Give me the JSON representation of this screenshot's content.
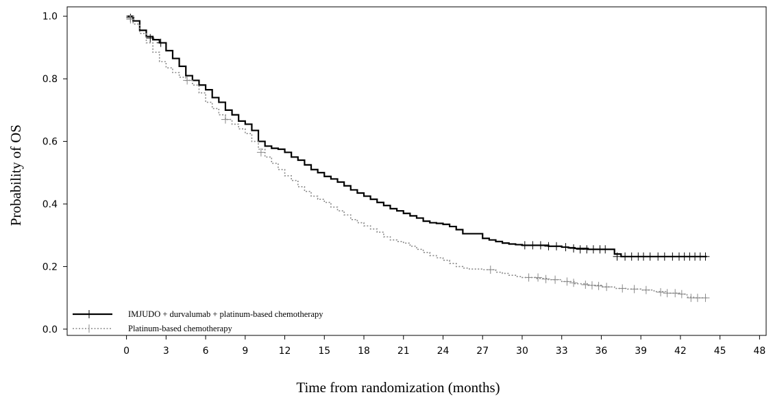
{
  "chart_data": {
    "type": "line",
    "chart_style": "kaplan-meier step curves with censor marks",
    "xlabel": "Time from randomization (months)",
    "ylabel": "Probability of OS",
    "xlim": [
      -4.5,
      48.5
    ],
    "ylim": [
      -0.02,
      1.03
    ],
    "x_ticks": [
      0,
      3,
      6,
      9,
      12,
      15,
      18,
      21,
      24,
      27,
      30,
      33,
      36,
      39,
      42,
      45,
      48
    ],
    "y_ticks": [
      0.0,
      0.2,
      0.4,
      0.6,
      0.8,
      1.0
    ],
    "y_tick_labels": [
      "0.0",
      "0.2",
      "0.4",
      "0.6",
      "0.8",
      "1.0"
    ],
    "grid": false,
    "legend_position": "bottom-left",
    "series": [
      {
        "name": "IMJUDO + durvalumab + platinum-based chemotherapy",
        "color": "#000000",
        "line_style": "solid",
        "points": [
          [
            0,
            1.0
          ],
          [
            0.5,
            0.985
          ],
          [
            1,
            0.955
          ],
          [
            1.5,
            0.935
          ],
          [
            2,
            0.925
          ],
          [
            2.5,
            0.915
          ],
          [
            3,
            0.89
          ],
          [
            3.5,
            0.865
          ],
          [
            4,
            0.84
          ],
          [
            4.5,
            0.81
          ],
          [
            5,
            0.795
          ],
          [
            5.5,
            0.78
          ],
          [
            6,
            0.765
          ],
          [
            6.5,
            0.74
          ],
          [
            7,
            0.725
          ],
          [
            7.5,
            0.7
          ],
          [
            8,
            0.685
          ],
          [
            8.5,
            0.665
          ],
          [
            9,
            0.655
          ],
          [
            9.5,
            0.635
          ],
          [
            10,
            0.6
          ],
          [
            10.5,
            0.585
          ],
          [
            11,
            0.578
          ],
          [
            11.5,
            0.575
          ],
          [
            12,
            0.565
          ],
          [
            12.5,
            0.55
          ],
          [
            13,
            0.54
          ],
          [
            13.5,
            0.525
          ],
          [
            14,
            0.51
          ],
          [
            14.5,
            0.5
          ],
          [
            15,
            0.488
          ],
          [
            15.5,
            0.48
          ],
          [
            16,
            0.47
          ],
          [
            16.5,
            0.458
          ],
          [
            17,
            0.445
          ],
          [
            17.5,
            0.435
          ],
          [
            18,
            0.425
          ],
          [
            18.5,
            0.415
          ],
          [
            19,
            0.405
          ],
          [
            19.5,
            0.395
          ],
          [
            20,
            0.385
          ],
          [
            20.5,
            0.378
          ],
          [
            21,
            0.37
          ],
          [
            21.5,
            0.362
          ],
          [
            22,
            0.355
          ],
          [
            22.5,
            0.345
          ],
          [
            23,
            0.34
          ],
          [
            23.5,
            0.338
          ],
          [
            24,
            0.335
          ],
          [
            24.5,
            0.328
          ],
          [
            25,
            0.318
          ],
          [
            25.5,
            0.305
          ],
          [
            26,
            0.305
          ],
          [
            26.5,
            0.305
          ],
          [
            27,
            0.29
          ],
          [
            27.5,
            0.285
          ],
          [
            28,
            0.28
          ],
          [
            28.5,
            0.275
          ],
          [
            29,
            0.272
          ],
          [
            29.5,
            0.27
          ],
          [
            30,
            0.268
          ],
          [
            31,
            0.268
          ],
          [
            32,
            0.265
          ],
          [
            33,
            0.262
          ],
          [
            33.5,
            0.26
          ],
          [
            34,
            0.258
          ],
          [
            35,
            0.255
          ],
          [
            36,
            0.255
          ],
          [
            36.5,
            0.255
          ],
          [
            37,
            0.24
          ],
          [
            37.5,
            0.232
          ],
          [
            38,
            0.232
          ],
          [
            40,
            0.232
          ],
          [
            42,
            0.232
          ],
          [
            44,
            0.232
          ]
        ],
        "censored": [
          [
            0.3,
            0.995
          ],
          [
            1.8,
            0.93
          ],
          [
            2.6,
            0.915
          ],
          [
            30.2,
            0.268
          ],
          [
            30.8,
            0.268
          ],
          [
            31.4,
            0.268
          ],
          [
            32.0,
            0.265
          ],
          [
            32.6,
            0.265
          ],
          [
            33.3,
            0.262
          ],
          [
            33.9,
            0.258
          ],
          [
            34.4,
            0.255
          ],
          [
            34.9,
            0.255
          ],
          [
            35.4,
            0.255
          ],
          [
            35.9,
            0.255
          ],
          [
            36.3,
            0.255
          ],
          [
            37.2,
            0.232
          ],
          [
            37.8,
            0.232
          ],
          [
            38.3,
            0.232
          ],
          [
            38.8,
            0.232
          ],
          [
            39.2,
            0.232
          ],
          [
            39.7,
            0.232
          ],
          [
            40.3,
            0.232
          ],
          [
            40.8,
            0.232
          ],
          [
            41.4,
            0.232
          ],
          [
            41.9,
            0.232
          ],
          [
            42.3,
            0.232
          ],
          [
            42.7,
            0.232
          ],
          [
            43.1,
            0.232
          ],
          [
            43.5,
            0.232
          ],
          [
            43.9,
            0.232
          ]
        ]
      },
      {
        "name": "Platinum-based chemotherapy",
        "color": "#888888",
        "line_style": "dotted",
        "points": [
          [
            0,
            1.0
          ],
          [
            0.5,
            0.975
          ],
          [
            1,
            0.945
          ],
          [
            1.5,
            0.915
          ],
          [
            2,
            0.885
          ],
          [
            2.5,
            0.855
          ],
          [
            3,
            0.835
          ],
          [
            3.5,
            0.82
          ],
          [
            4,
            0.805
          ],
          [
            4.5,
            0.795
          ],
          [
            5,
            0.78
          ],
          [
            5.5,
            0.755
          ],
          [
            6,
            0.725
          ],
          [
            6.5,
            0.705
          ],
          [
            7,
            0.685
          ],
          [
            7.5,
            0.67
          ],
          [
            8,
            0.655
          ],
          [
            8.5,
            0.64
          ],
          [
            9,
            0.625
          ],
          [
            9.5,
            0.6
          ],
          [
            10,
            0.575
          ],
          [
            10.5,
            0.55
          ],
          [
            11,
            0.53
          ],
          [
            11.5,
            0.51
          ],
          [
            12,
            0.49
          ],
          [
            12.5,
            0.475
          ],
          [
            13,
            0.455
          ],
          [
            13.5,
            0.44
          ],
          [
            14,
            0.425
          ],
          [
            14.5,
            0.415
          ],
          [
            15,
            0.405
          ],
          [
            15.5,
            0.39
          ],
          [
            16,
            0.378
          ],
          [
            16.5,
            0.365
          ],
          [
            17,
            0.35
          ],
          [
            17.5,
            0.34
          ],
          [
            18,
            0.33
          ],
          [
            18.5,
            0.32
          ],
          [
            19,
            0.31
          ],
          [
            19.5,
            0.295
          ],
          [
            20,
            0.285
          ],
          [
            20.5,
            0.28
          ],
          [
            21,
            0.275
          ],
          [
            21.5,
            0.265
          ],
          [
            22,
            0.255
          ],
          [
            22.5,
            0.245
          ],
          [
            23,
            0.235
          ],
          [
            23.5,
            0.228
          ],
          [
            24,
            0.22
          ],
          [
            24.5,
            0.21
          ],
          [
            25,
            0.2
          ],
          [
            25.5,
            0.195
          ],
          [
            26,
            0.192
          ],
          [
            27,
            0.19
          ],
          [
            27.5,
            0.19
          ],
          [
            28,
            0.182
          ],
          [
            28.5,
            0.178
          ],
          [
            29,
            0.172
          ],
          [
            29.5,
            0.168
          ],
          [
            30,
            0.165
          ],
          [
            31,
            0.162
          ],
          [
            32,
            0.158
          ],
          [
            33,
            0.152
          ],
          [
            34,
            0.145
          ],
          [
            35,
            0.14
          ],
          [
            36,
            0.135
          ],
          [
            37,
            0.13
          ],
          [
            38,
            0.128
          ],
          [
            39,
            0.125
          ],
          [
            40,
            0.12
          ],
          [
            41,
            0.115
          ],
          [
            42,
            0.112
          ],
          [
            42.5,
            0.102
          ],
          [
            43,
            0.1
          ],
          [
            44,
            0.1
          ]
        ],
        "censored": [
          [
            0.3,
            0.99
          ],
          [
            4.6,
            0.795
          ],
          [
            7.5,
            0.67
          ],
          [
            10.2,
            0.565
          ],
          [
            27.6,
            0.19
          ],
          [
            30.5,
            0.165
          ],
          [
            31.2,
            0.165
          ],
          [
            31.8,
            0.16
          ],
          [
            32.5,
            0.158
          ],
          [
            33.4,
            0.152
          ],
          [
            33.9,
            0.148
          ],
          [
            34.8,
            0.142
          ],
          [
            35.3,
            0.14
          ],
          [
            35.8,
            0.138
          ],
          [
            36.4,
            0.135
          ],
          [
            37.6,
            0.13
          ],
          [
            38.5,
            0.128
          ],
          [
            39.4,
            0.125
          ],
          [
            40.5,
            0.118
          ],
          [
            41.0,
            0.115
          ],
          [
            41.6,
            0.115
          ],
          [
            42.1,
            0.112
          ],
          [
            42.8,
            0.1
          ],
          [
            43.3,
            0.1
          ],
          [
            43.9,
            0.1
          ]
        ]
      }
    ]
  }
}
